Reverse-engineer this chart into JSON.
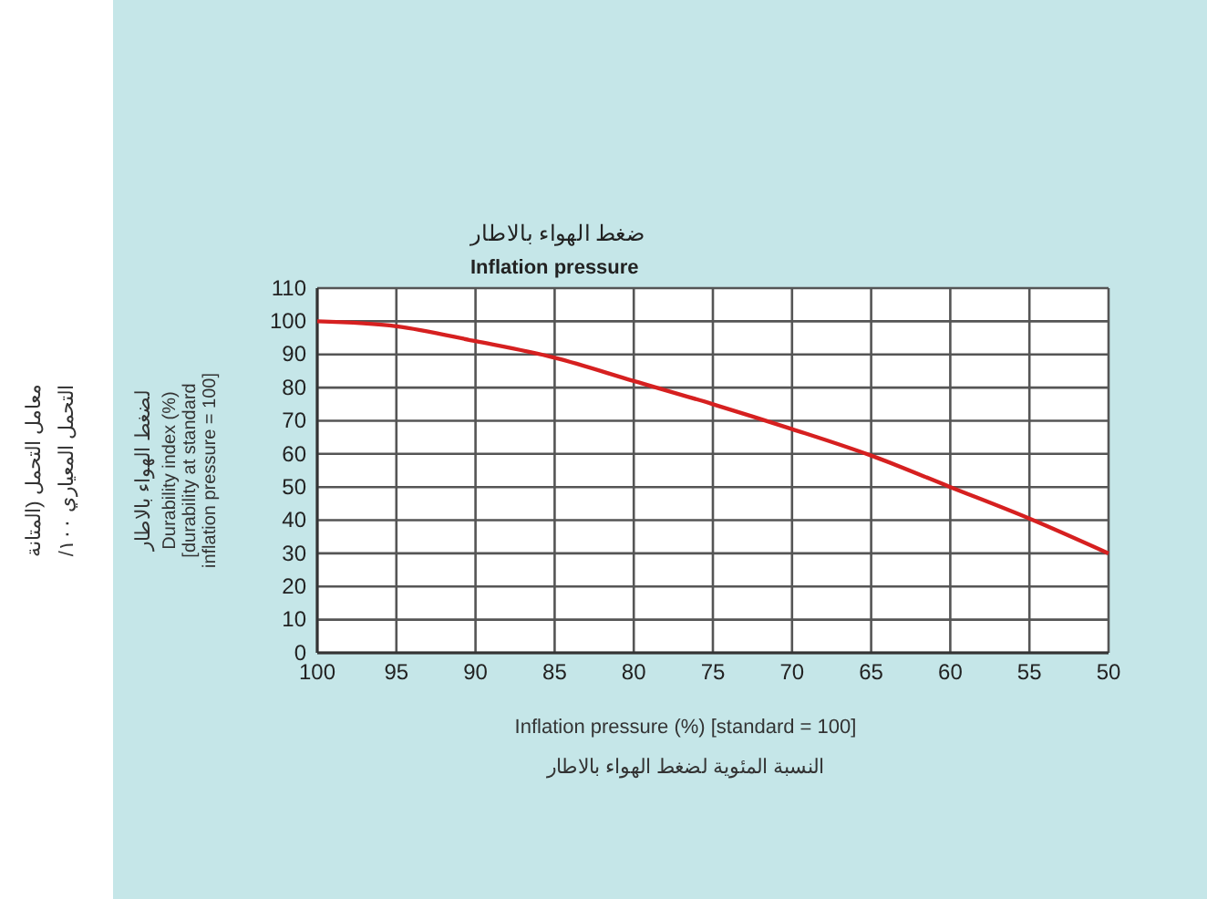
{
  "chart_data": {
    "type": "line",
    "title": "ضغط الهواء بالاطار",
    "subtitle": "Inflation pressure",
    "xlabel": "Inflation pressure (%) [standard = 100]",
    "ylabel": "Durability index (%)\n[durability at standard\ninflation pressure = 100]",
    "annotations": [
      "معامل التحمل (المتانة",
      "التحمل المعياري ١٠٠/",
      "لضغط الهواء بالاطار",
      "النسبة المئوية لضغط الهواء بالاطار"
    ],
    "x": [
      100,
      95,
      90,
      85,
      80,
      75,
      70,
      65,
      60,
      55,
      50
    ],
    "series": [
      {
        "color": "#d62020",
        "values": [
          100,
          98.5,
          94,
          89,
          82,
          75,
          67.5,
          59.5,
          50,
          40.5,
          30
        ]
      }
    ],
    "xlim": [
      100,
      50
    ],
    "xticks": [
      100,
      95,
      90,
      85,
      80,
      75,
      70,
      65,
      60,
      55,
      50
    ],
    "ylim": [
      0,
      110
    ],
    "yticks": [
      0,
      10,
      20,
      30,
      40,
      50,
      60,
      70,
      80,
      90,
      100,
      110
    ],
    "grid": true,
    "marker": "none",
    "line_style": "solid"
  }
}
